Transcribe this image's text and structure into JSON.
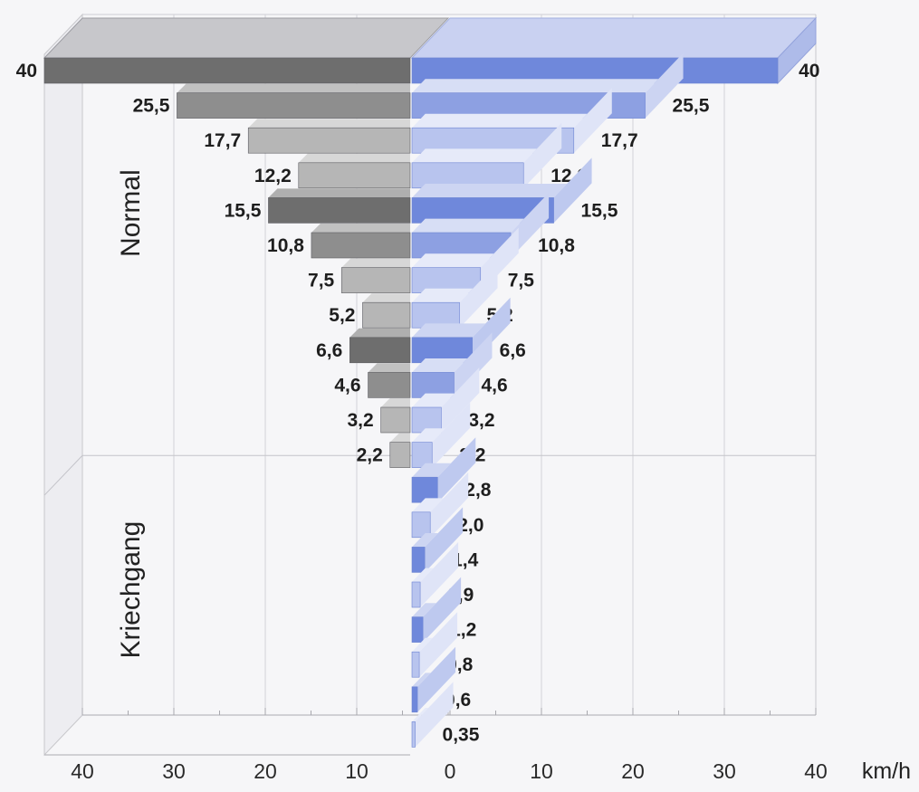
{
  "chart_data": {
    "type": "bar",
    "orientation": "horizontal",
    "layout": "back-to-back (butterfly), 3D bars",
    "xlim": [
      0,
      40
    ],
    "x_unit": "km/h",
    "x_ticks_left": [
      "40",
      "30",
      "20",
      "10"
    ],
    "x_ticks_right": [
      "0",
      "10",
      "20",
      "30",
      "40"
    ],
    "grid": true,
    "groups": [
      {
        "name": "Normal",
        "rows": 12
      },
      {
        "name": "Kriechgang",
        "rows": 8
      }
    ],
    "series": [
      {
        "side": "left",
        "color": "#6e6e6e",
        "values": [
          40,
          25.5,
          17.7,
          12.2,
          15.5,
          10.8,
          7.5,
          5.2,
          6.6,
          4.6,
          3.2,
          2.2
        ],
        "labels": [
          "40",
          "25,5",
          "17,7",
          "12,2",
          "15,5",
          "10,8",
          "7,5",
          "5,2",
          "6,6",
          "4,6",
          "3,2",
          "2,2"
        ]
      },
      {
        "side": "right",
        "color": "#7b93de",
        "values": [
          40,
          25.5,
          17.7,
          12.2,
          15.5,
          10.8,
          7.5,
          5.2,
          6.6,
          4.6,
          3.2,
          2.2,
          2.8,
          2.0,
          1.4,
          0.9,
          1.2,
          0.8,
          0.6,
          0.35
        ],
        "labels": [
          "40",
          "25,5",
          "17,7",
          "12,2",
          "15,5",
          "10,8",
          "7,5",
          "5,2",
          "6,6",
          "4,6",
          "3,2",
          "2,2",
          "2,8",
          "2,0",
          "1,4",
          "0,9",
          "1,2",
          "0,8",
          "0,6",
          "0,35"
        ]
      }
    ],
    "colors": {
      "left_dark": "#6e6e6e",
      "left_mid": "#8e8e8e",
      "left_light": "#b6b6b6",
      "right_dark": "#6f88db",
      "right_mid": "#8da0e2",
      "right_light": "#b8c4ee"
    }
  }
}
